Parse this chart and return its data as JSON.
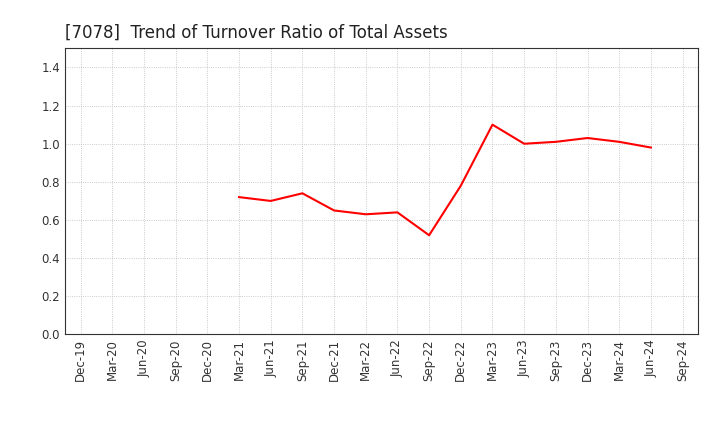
{
  "title": "[7078]  Trend of Turnover Ratio of Total Assets",
  "line_color": "#ff0000",
  "line_width": 1.5,
  "background_color": "#ffffff",
  "plot_background_color": "#ffffff",
  "grid_color": "#bbbbbb",
  "ylim": [
    0.0,
    1.5
  ],
  "yticks": [
    0.0,
    0.2,
    0.4,
    0.6,
    0.8,
    1.0,
    1.2,
    1.4
  ],
  "x_labels": [
    "Dec-19",
    "Mar-20",
    "Jun-20",
    "Sep-20",
    "Dec-20",
    "Mar-21",
    "Jun-21",
    "Sep-21",
    "Dec-21",
    "Mar-22",
    "Jun-22",
    "Sep-22",
    "Dec-22",
    "Mar-23",
    "Jun-23",
    "Sep-23",
    "Dec-23",
    "Mar-24",
    "Jun-24",
    "Sep-24"
  ],
  "data_labels": [
    "Mar-21",
    "Jun-21",
    "Sep-21",
    "Dec-21",
    "Mar-22",
    "Jun-22",
    "Sep-22",
    "Dec-22",
    "Mar-23",
    "Jun-23",
    "Sep-23",
    "Dec-23",
    "Mar-24",
    "Jun-24"
  ],
  "data_values": [
    0.72,
    0.7,
    0.74,
    0.65,
    0.63,
    0.64,
    0.52,
    0.78,
    1.1,
    1.0,
    1.01,
    1.03,
    1.01,
    0.98
  ],
  "title_fontsize": 12,
  "tick_fontsize": 8.5,
  "title_color": "#222222"
}
